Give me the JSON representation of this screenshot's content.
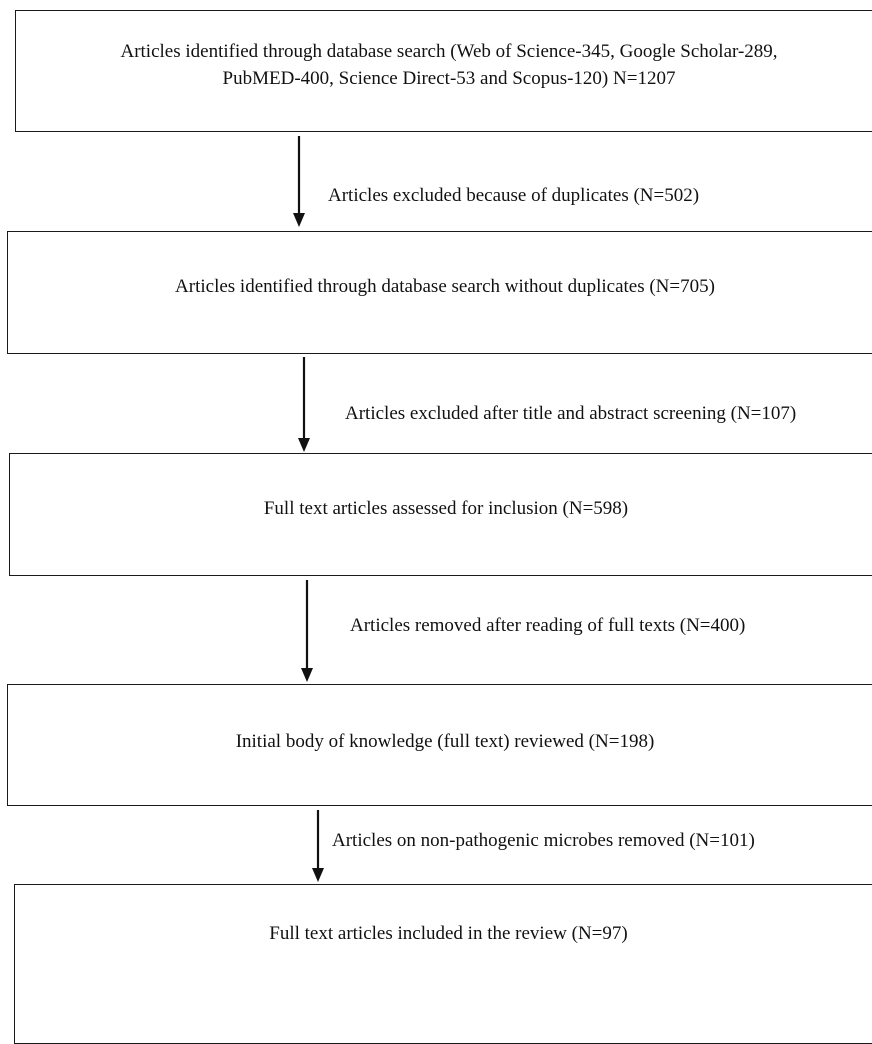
{
  "flowchart": {
    "steps": [
      {
        "lines": [
          "Articles identified through database search (Web of Science-345, Google Scholar-289,",
          "PubMED-400, Science Direct-53 and Scopus-120) N=1207"
        ]
      },
      {
        "lines": [
          "Articles identified through database search without duplicates (N=705)"
        ]
      },
      {
        "lines": [
          "Full text articles assessed for inclusion (N=598)"
        ]
      },
      {
        "lines": [
          "Initial body of knowledge (full text) reviewed (N=198)"
        ]
      },
      {
        "lines": [
          "Full text articles included in the review (N=97)"
        ]
      }
    ],
    "exclusions": [
      "Articles excluded because of duplicates (N=502)",
      "Articles excluded after title and abstract screening (N=107)",
      "Articles removed after reading of full texts (N=400)",
      "Articles on non-pathogenic microbes removed (N=101)"
    ]
  }
}
